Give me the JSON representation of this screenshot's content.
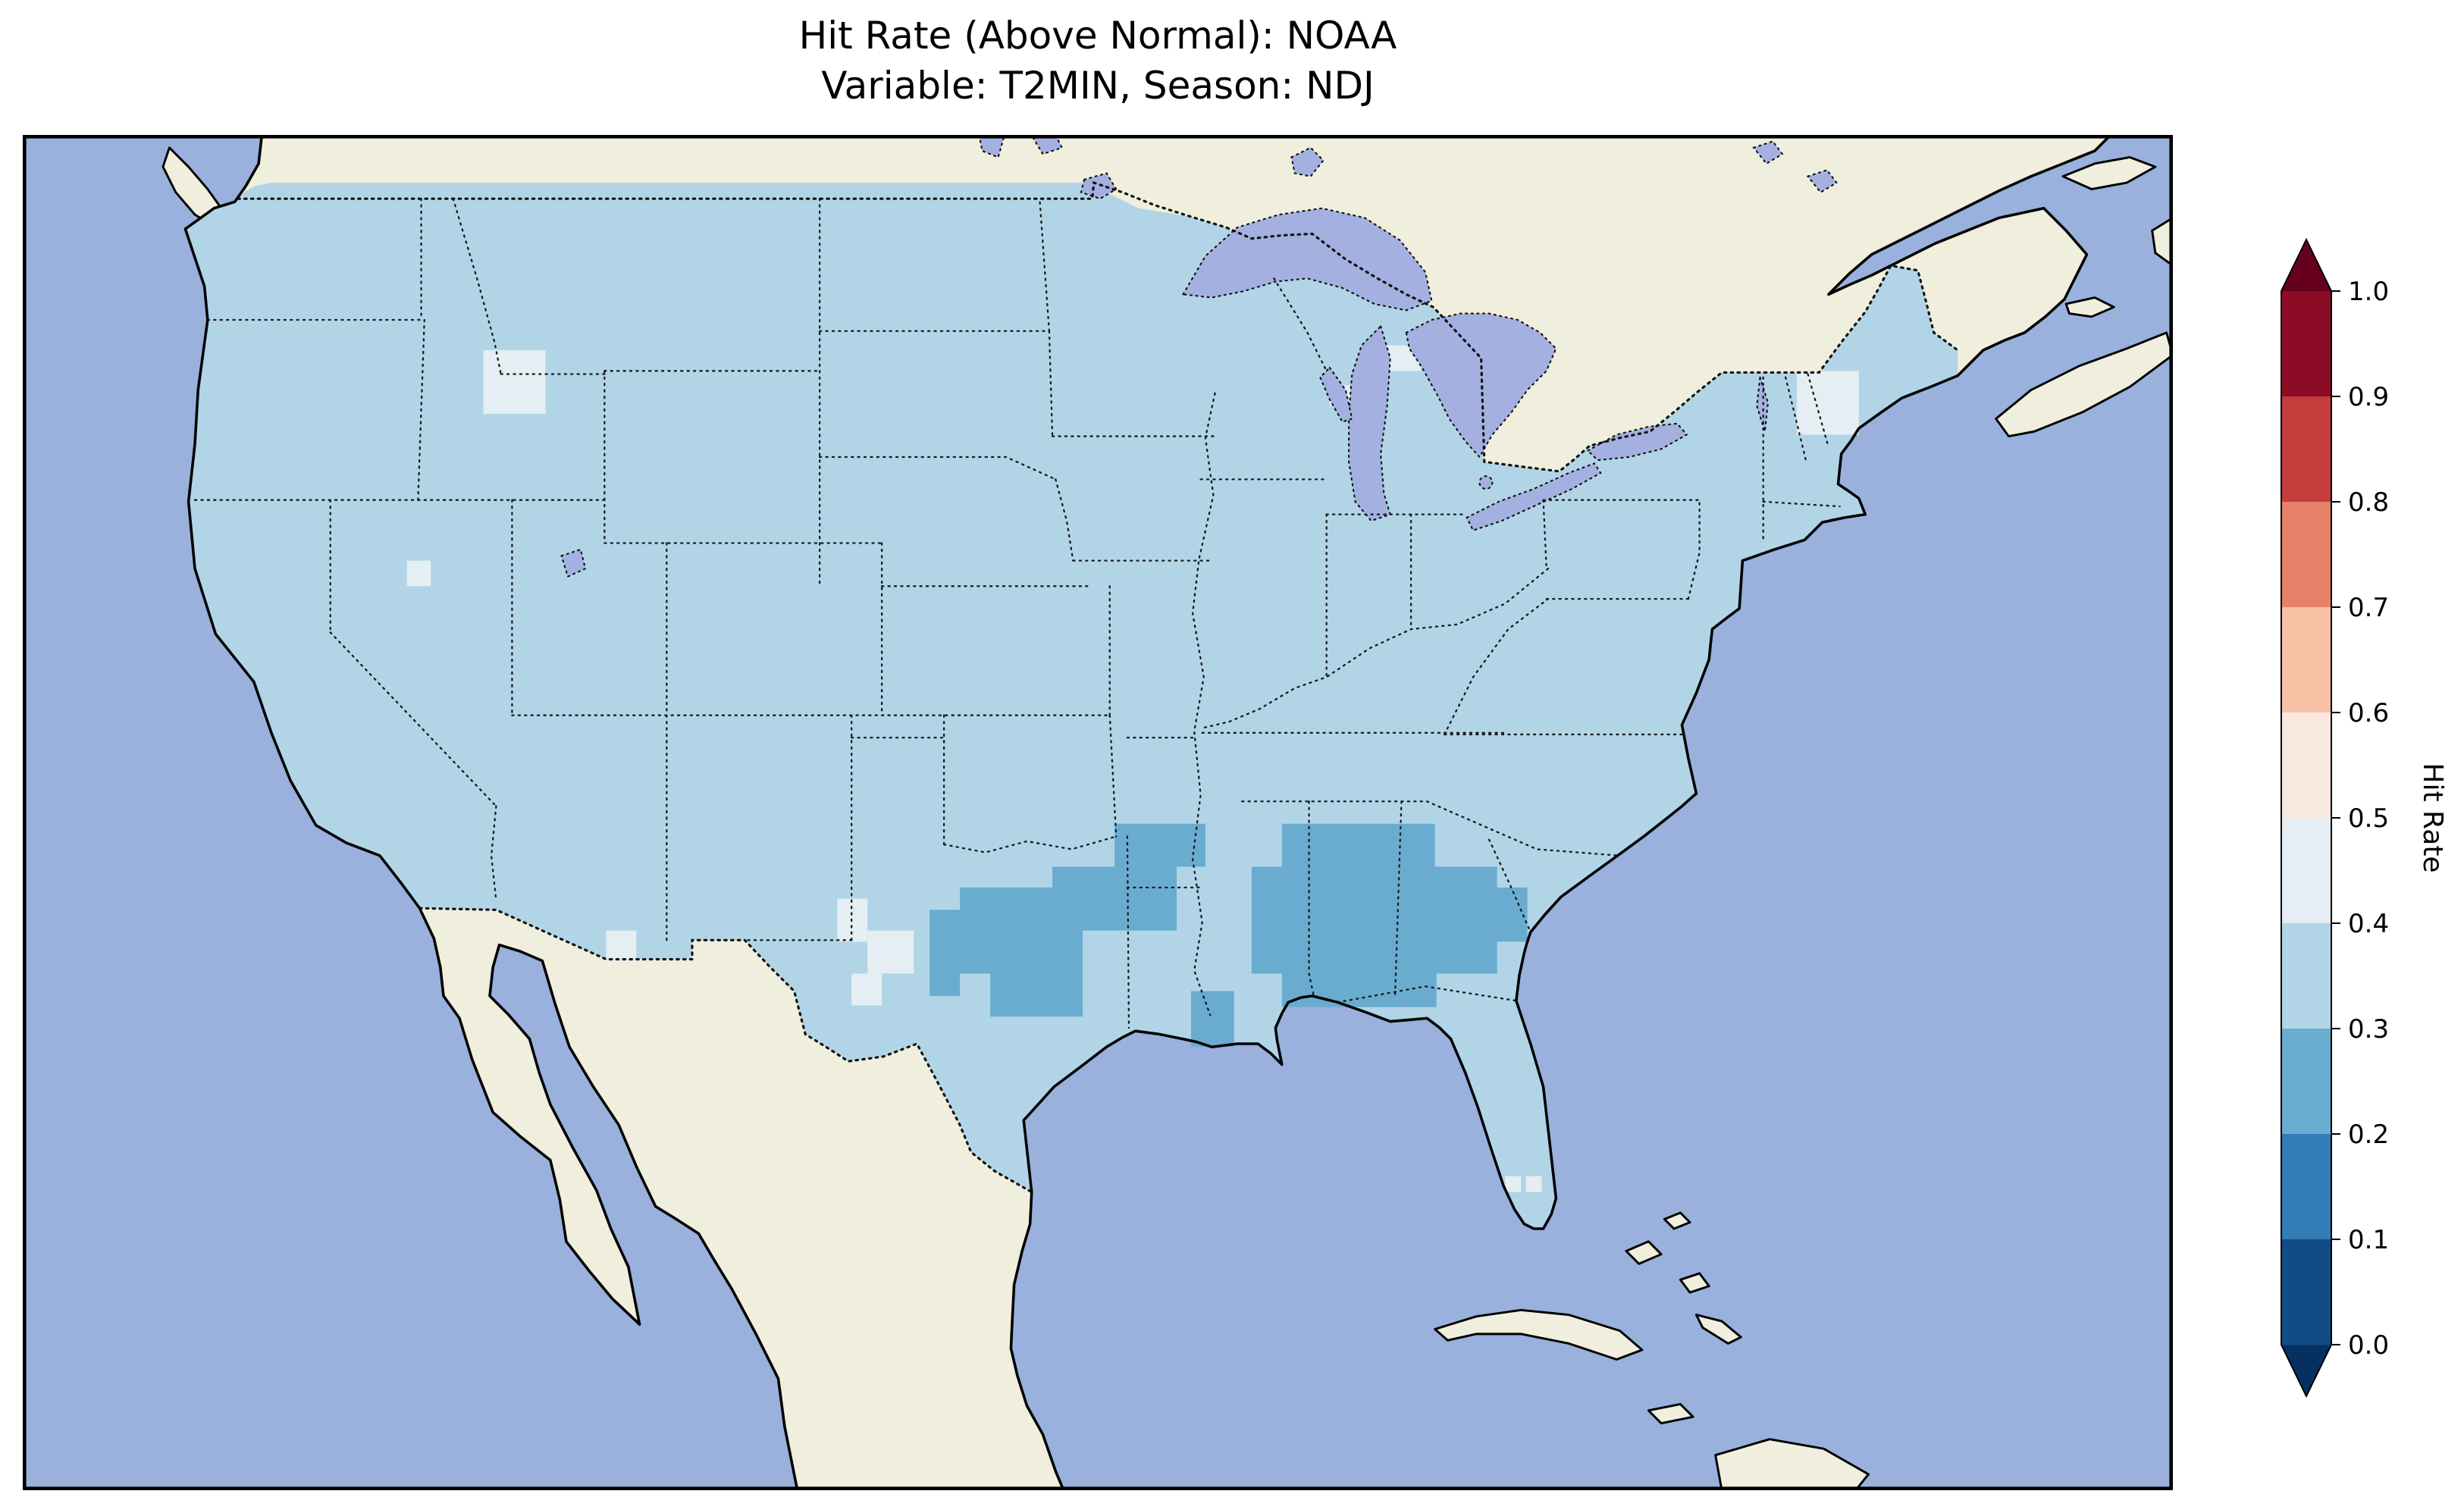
{
  "title": {
    "line1": "Hit Rate (Above Normal): NOAA",
    "line2": "Variable: T2MIN, Season: NDJ"
  },
  "colorbar": {
    "label": "Hit Rate",
    "ticks": [
      "1.0",
      "0.9",
      "0.8",
      "0.7",
      "0.6",
      "0.5",
      "0.4",
      "0.3",
      "0.2",
      "0.1",
      "0.0"
    ],
    "segments_top_to_bottom": [
      {
        "range": "0.9–1.0",
        "color": "#8c0c25"
      },
      {
        "range": "0.8–0.9",
        "color": "#c43c3c"
      },
      {
        "range": "0.7–0.8",
        "color": "#e58267"
      },
      {
        "range": "0.6–0.7",
        "color": "#f8c0a4"
      },
      {
        "range": "0.5–0.6",
        "color": "#fae9df"
      },
      {
        "range": "0.4–0.5",
        "color": "#e4eef3"
      },
      {
        "range": "0.3–0.4",
        "color": "#b1d5e7"
      },
      {
        "range": "0.2–0.3",
        "color": "#6aacd0"
      },
      {
        "range": "0.1–0.2",
        "color": "#327cb7"
      },
      {
        "range": "0.0–0.1",
        "color": "#134b86"
      }
    ],
    "over_arrow_color": "#67001f",
    "under_arrow_color": "#053061"
  },
  "map": {
    "ocean_color": "#99b1dc",
    "land_color": "#f0eedc",
    "lake_color": "#a3b0e0",
    "base_fill": {
      "bin": "0.3–0.4",
      "color": "#b1d5e7"
    },
    "cells": [
      {
        "bin": "0.2–0.3",
        "color": "#6aacd0",
        "rects": [
          [
            569,
            486,
            19,
            54
          ],
          [
            588,
            472,
            77,
            54
          ],
          [
            607,
            526,
            58,
            27
          ],
          [
            646,
            459,
            78,
            40
          ],
          [
            685,
            432,
            57,
            27
          ],
          [
            733,
            537,
            27,
            35
          ],
          [
            790,
            432,
            96,
            27
          ],
          [
            771,
            459,
            154,
            67
          ],
          [
            790,
            526,
            97,
            21
          ],
          [
            905,
            472,
            39,
            34
          ]
        ]
      },
      {
        "bin": "0.4–0.5",
        "color": "#e4eef3",
        "rects": [
          [
            289,
            135,
            39,
            40
          ],
          [
            241,
            267,
            15,
            16
          ],
          [
            366,
            499,
            19,
            19
          ],
          [
            511,
            479,
            19,
            27
          ],
          [
            530,
            499,
            29,
            27
          ],
          [
            520,
            526,
            19,
            20
          ],
          [
            849,
            132,
            28,
            16
          ],
          [
            820,
            157,
            13,
            13
          ],
          [
            1113,
            148,
            39,
            40
          ],
          [
            930,
            653,
            10,
            10
          ],
          [
            943,
            653,
            10,
            10
          ]
        ]
      }
    ]
  },
  "chart_data": {
    "type": "heatmap",
    "title": "Hit Rate (Above Normal): NOAA",
    "subtitle": "Variable: T2MIN, Season: NDJ",
    "region": "Contiguous United States, with surrounding Canada, Mexico, Pacific and Atlantic Oceans",
    "colorbar_label": "Hit Rate",
    "colorbar_ticks": [
      1.0,
      0.9,
      0.8,
      0.7,
      0.6,
      0.5,
      0.4,
      0.3,
      0.2,
      0.1,
      0.0
    ],
    "colormap": "RdBu_r, discrete 0.1 bins, pointed extend arrows at both ends",
    "values_summary": [
      {
        "area": "Most of the contiguous US",
        "hit_rate_bin": "0.3–0.4"
      },
      {
        "area": "Southern Plains and Southeast: central/east Texas, SE Oklahoma, Arkansas, a Louisiana cell, Mississippi, Alabama, Georgia, Tennessee band",
        "hit_rate_bin": "0.2–0.3"
      },
      {
        "area": "Scattered light patches: central Idaho, NW Nevada cell, SE Arizona border, west Texas cluster, northern Michigan, northern New England, two south Florida cells",
        "hit_rate_bin": "0.4–0.5"
      },
      {
        "area": "Canada and Mexico",
        "hit_rate_bin": "no data (land fill)"
      }
    ]
  }
}
